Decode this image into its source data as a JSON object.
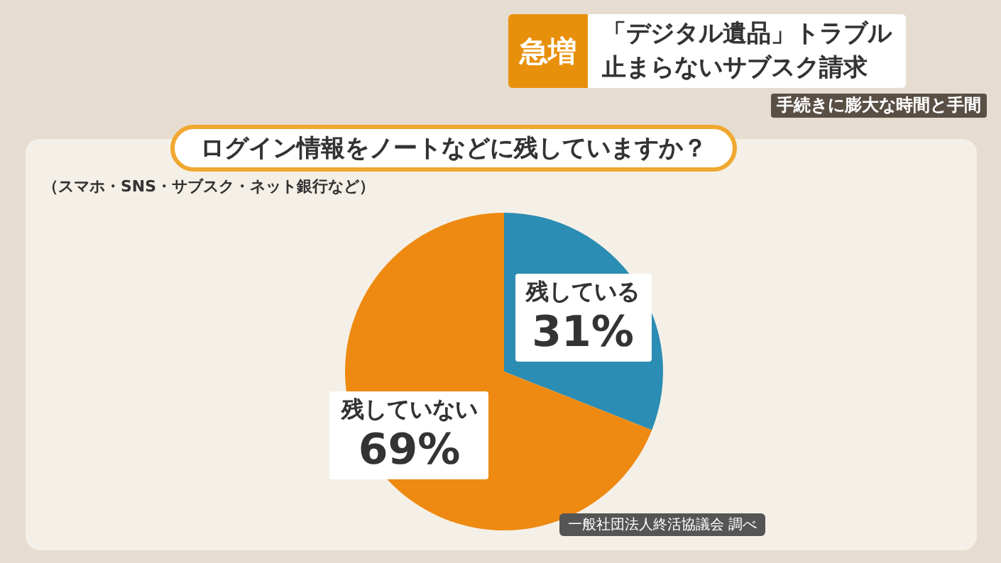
{
  "chart_data": {
    "type": "pie",
    "title": "ログイン情報をノートなどに残していますか？",
    "subtitle": "（スマホ・SNS・サブスク・ネット銀行など）",
    "categories": [
      "残している",
      "残していない"
    ],
    "values": [
      31,
      69
    ],
    "value_labels": [
      "31%",
      "69%"
    ],
    "colors": [
      "#2b8db3",
      "#ee8a12"
    ],
    "annotations": [
      "急増",
      "「デジタル遺品」トラブル",
      "止まらないサブスク請求",
      "手続きに膨大な時間と手間",
      "一般社団法人終活協議会 調べ"
    ]
  }
}
